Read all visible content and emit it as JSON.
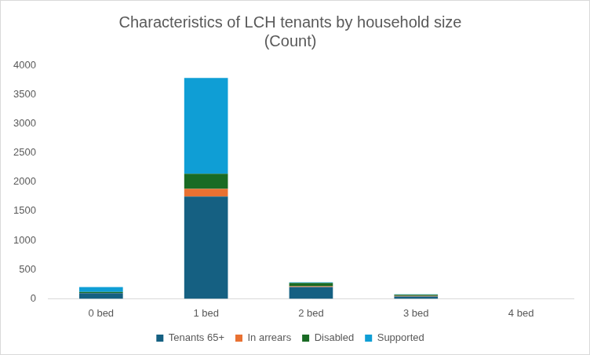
{
  "chart_data": {
    "type": "bar",
    "title": [
      "Characteristics of LCH tenants by household size",
      "(Count)"
    ],
    "categories": [
      "0 bed",
      "1 bed",
      "2 bed",
      "3 bed",
      "4 bed"
    ],
    "series": [
      {
        "name": "Tenants 65+",
        "color": "#156082",
        "values": [
          95,
          1750,
          200,
          40,
          0
        ]
      },
      {
        "name": "In arrears",
        "color": "#E97132",
        "values": [
          5,
          130,
          15,
          10,
          0
        ]
      },
      {
        "name": "Disabled",
        "color": "#196B24",
        "values": [
          15,
          260,
          55,
          20,
          0
        ]
      },
      {
        "name": "Supported",
        "color": "#0F9ED5",
        "values": [
          85,
          1640,
          10,
          5,
          0
        ]
      }
    ],
    "stacked": true,
    "ylim": [
      0,
      4000
    ],
    "yticks": [
      0,
      500,
      1000,
      1500,
      2000,
      2500,
      3000,
      3500,
      4000
    ],
    "grid": false,
    "legend": "bottom"
  }
}
